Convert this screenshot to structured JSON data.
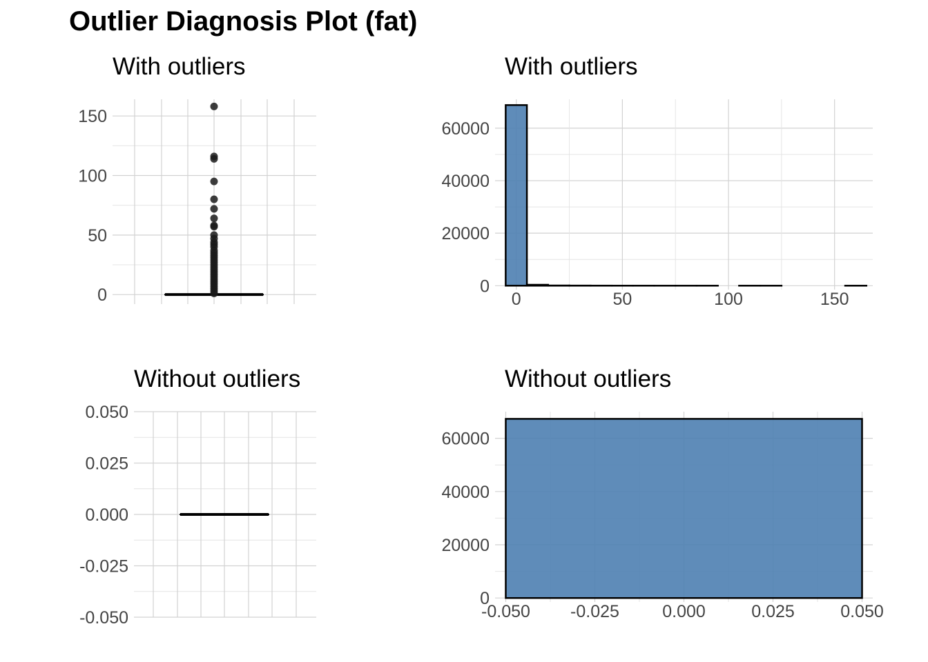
{
  "title": "Outlier Diagnosis Plot (fat)",
  "colors": {
    "bar_fill": "#4e7fb1",
    "bar_outline": "#000000",
    "point": "#1a1a1a",
    "grid": "#d2d2d2"
  },
  "chart_data": [
    {
      "id": "boxplot-with-outliers",
      "type": "boxplot",
      "title": "With outliers",
      "xlabel": "",
      "ylabel": "",
      "ylim": [
        -8,
        164
      ],
      "yticks": [
        0,
        50,
        100,
        150
      ],
      "ytick_labels": [
        "0",
        "50",
        "100",
        "150"
      ],
      "box": {
        "q1": 0,
        "median": 0,
        "q3": 0,
        "whisker_low": 0,
        "whisker_high": 0
      },
      "outliers": [
        158,
        116,
        114,
        95,
        80,
        72,
        64,
        58,
        57,
        50,
        47,
        44,
        42,
        40,
        37,
        35,
        33,
        31,
        29,
        27,
        25,
        23,
        21,
        19,
        17,
        15,
        13,
        11,
        9,
        7,
        5,
        3,
        1
      ],
      "grid": true,
      "legend": "none"
    },
    {
      "id": "histogram-with-outliers",
      "type": "histogram",
      "title": "With outliers",
      "xlabel": "",
      "ylabel": "",
      "xlim": [
        -10,
        168
      ],
      "ylim": [
        -1500,
        71000
      ],
      "xticks": [
        0,
        50,
        100,
        150
      ],
      "xtick_labels": [
        "0",
        "50",
        "100",
        "150"
      ],
      "yticks": [
        0,
        20000,
        40000,
        60000
      ],
      "ytick_labels": [
        "0",
        "20000",
        "40000",
        "60000"
      ],
      "bins": [
        {
          "x0": -5,
          "x1": 5,
          "count": 68800
        },
        {
          "x0": 5,
          "x1": 15,
          "count": 350
        },
        {
          "x0": 15,
          "x1": 25,
          "count": 70
        },
        {
          "x0": 25,
          "x1": 35,
          "count": 40
        },
        {
          "x0": 35,
          "x1": 45,
          "count": 20
        },
        {
          "x0": 45,
          "x1": 55,
          "count": 8
        },
        {
          "x0": 55,
          "x1": 65,
          "count": 5
        },
        {
          "x0": 65,
          "x1": 75,
          "count": 2
        },
        {
          "x0": 75,
          "x1": 85,
          "count": 1
        },
        {
          "x0": 85,
          "x1": 95,
          "count": 1
        },
        {
          "x0": 95,
          "x1": 105,
          "count": 0
        },
        {
          "x0": 105,
          "x1": 115,
          "count": 1
        },
        {
          "x0": 115,
          "x1": 125,
          "count": 1
        },
        {
          "x0": 125,
          "x1": 135,
          "count": 0
        },
        {
          "x0": 135,
          "x1": 145,
          "count": 0
        },
        {
          "x0": 145,
          "x1": 155,
          "count": 0
        },
        {
          "x0": 155,
          "x1": 165,
          "count": 1
        }
      ],
      "grid": true,
      "legend": "none"
    },
    {
      "id": "boxplot-without-outliers",
      "type": "boxplot",
      "title": "Without outliers",
      "xlabel": "",
      "ylabel": "",
      "ylim": [
        -0.05,
        0.05
      ],
      "yticks": [
        -0.05,
        -0.025,
        0,
        0.025,
        0.05
      ],
      "ytick_labels": [
        "-0.050",
        "-0.025",
        "0.000",
        "0.025",
        "0.050"
      ],
      "box": {
        "q1": 0,
        "median": 0,
        "q3": 0,
        "whisker_low": 0,
        "whisker_high": 0
      },
      "outliers": [],
      "grid": true,
      "legend": "none"
    },
    {
      "id": "histogram-without-outliers",
      "type": "histogram",
      "title": "Without outliers",
      "xlabel": "",
      "ylabel": "",
      "xlim": [
        -0.053,
        0.053
      ],
      "ylim": [
        -1500,
        70000
      ],
      "xticks": [
        -0.05,
        -0.025,
        0,
        0.025,
        0.05
      ],
      "xtick_labels": [
        "-0.050",
        "-0.025",
        "0.000",
        "0.025",
        "0.050"
      ],
      "yticks": [
        0,
        20000,
        40000,
        60000
      ],
      "ytick_labels": [
        "0",
        "20000",
        "40000",
        "60000"
      ],
      "bins": [
        {
          "x0": -0.05,
          "x1": 0.05,
          "count": 67300
        }
      ],
      "grid": true,
      "legend": "none"
    }
  ]
}
